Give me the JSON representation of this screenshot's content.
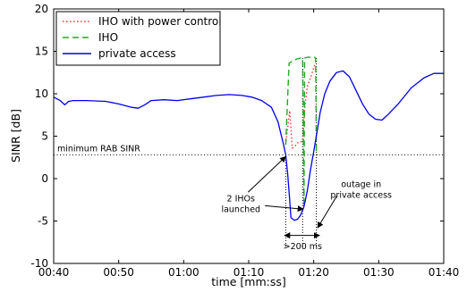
{
  "chart_data": {
    "type": "line",
    "xlabel": "time [mm:ss]",
    "ylabel": "SINR [dB]",
    "xlim": [
      40,
      100
    ],
    "ylim": [
      -10,
      20
    ],
    "grid": false,
    "legend_position": "top-left",
    "x_ticks": [
      {
        "value": 40,
        "label": "00:40"
      },
      {
        "value": 50,
        "label": "00:50"
      },
      {
        "value": 60,
        "label": "01:00"
      },
      {
        "value": 70,
        "label": "01:10"
      },
      {
        "value": 80,
        "label": "01:20"
      },
      {
        "value": 90,
        "label": "01:30"
      },
      {
        "value": 100,
        "label": "01:40"
      }
    ],
    "y_ticks": [
      -10,
      -5,
      0,
      5,
      10,
      15,
      20
    ],
    "series": [
      {
        "name": "IHO with power control",
        "color": "#ff3333",
        "dash": "dotted",
        "points": [
          [
            75.7,
            4.0
          ],
          [
            76.3,
            8.0
          ],
          [
            76.7,
            3.6
          ],
          [
            77.2,
            3.9
          ],
          [
            77.5,
            4.2
          ],
          [
            78.3,
            4.4
          ],
          [
            78.6,
            8.2
          ],
          [
            79.0,
            10.8
          ],
          [
            79.6,
            12.1
          ],
          [
            80.1,
            13.3
          ],
          [
            80.4,
            13.6
          ]
        ]
      },
      {
        "name": "IHO",
        "color": "#22aa22",
        "dash": "dashed",
        "points": [
          [
            75.7,
            4.0
          ],
          [
            76.2,
            13.6
          ],
          [
            76.8,
            13.9
          ],
          [
            77.4,
            14.1
          ],
          [
            78.0,
            14.2
          ],
          [
            78.3,
            14.2
          ],
          [
            78.5,
            -3.3
          ],
          [
            78.6,
            14.2
          ],
          [
            79.0,
            14.3
          ],
          [
            79.6,
            14.3
          ],
          [
            80.1,
            14.3
          ],
          [
            80.3,
            14.2
          ],
          [
            80.4,
            3.0
          ]
        ]
      },
      {
        "name": "private access",
        "color": "#0000ee",
        "dash": "solid",
        "points": [
          [
            40.0,
            9.6
          ],
          [
            41.0,
            9.2
          ],
          [
            41.7,
            8.7
          ],
          [
            42.3,
            9.1
          ],
          [
            43.0,
            9.2
          ],
          [
            45.0,
            9.2
          ],
          [
            48.0,
            9.1
          ],
          [
            50.0,
            8.8
          ],
          [
            52.0,
            8.4
          ],
          [
            53.0,
            8.3
          ],
          [
            54.0,
            8.7
          ],
          [
            55.0,
            9.2
          ],
          [
            57.0,
            9.3
          ],
          [
            59.0,
            9.2
          ],
          [
            61.0,
            9.4
          ],
          [
            63.0,
            9.6
          ],
          [
            65.0,
            9.8
          ],
          [
            67.0,
            9.9
          ],
          [
            69.0,
            9.8
          ],
          [
            70.5,
            9.6
          ],
          [
            72.0,
            9.2
          ],
          [
            73.5,
            8.4
          ],
          [
            74.5,
            6.7
          ],
          [
            75.3,
            4.2
          ],
          [
            75.7,
            2.8
          ],
          [
            76.0,
            0.5
          ],
          [
            76.3,
            -2.5
          ],
          [
            76.5,
            -4.6
          ],
          [
            77.0,
            -4.9
          ],
          [
            77.5,
            -4.8
          ],
          [
            78.0,
            -4.3
          ],
          [
            78.5,
            -3.3
          ],
          [
            79.0,
            -1.5
          ],
          [
            79.5,
            1.0
          ],
          [
            80.0,
            3.2
          ],
          [
            80.4,
            5.0
          ],
          [
            81.0,
            7.8
          ],
          [
            81.7,
            10.0
          ],
          [
            82.5,
            11.5
          ],
          [
            83.5,
            12.5
          ],
          [
            84.5,
            12.7
          ],
          [
            85.5,
            12.0
          ],
          [
            86.5,
            10.4
          ],
          [
            87.5,
            8.8
          ],
          [
            88.5,
            7.6
          ],
          [
            89.5,
            7.0
          ],
          [
            90.5,
            6.9
          ],
          [
            91.5,
            7.6
          ],
          [
            93.0,
            8.8
          ],
          [
            95.0,
            10.7
          ],
          [
            97.0,
            11.9
          ],
          [
            98.5,
            12.4
          ],
          [
            100.0,
            12.4
          ]
        ]
      }
    ],
    "reference_line": {
      "label": "minimum RAB SINR",
      "y": 2.8
    },
    "annotations": [
      {
        "id": "two-ihos",
        "lines": [
          "2 IHOs",
          "launched"
        ],
        "x": 68.8,
        "y": -2.7
      },
      {
        "id": "outage",
        "lines": [
          "outage in",
          "private access"
        ],
        "x": 87.3,
        "y": -1.0
      },
      {
        "id": "duration",
        "lines": [
          ">200 ms"
        ],
        "x": 78.3,
        "y": -8.3
      }
    ],
    "annotation_arrows": [
      {
        "from": [
          69.9,
          -1.6
        ],
        "to": [
          75.7,
          2.6
        ]
      },
      {
        "from": [
          72.5,
          -3.2
        ],
        "to": [
          78.4,
          -3.6
        ]
      },
      {
        "from": [
          83.6,
          -2.0
        ],
        "to": [
          80.6,
          -5.8
        ]
      },
      {
        "from": [
          78.3,
          -6.7
        ],
        "to": [
          75.5,
          -6.7
        ]
      },
      {
        "from": [
          78.3,
          -6.7
        ],
        "to": [
          80.9,
          -6.7
        ]
      }
    ],
    "vertical_markers": [
      {
        "x": 75.7,
        "y_from": -8.0,
        "y_to": 3.0
      },
      {
        "x": 78.3,
        "y_from": -8.0,
        "y_to": 14.3
      },
      {
        "x": 80.4,
        "y_from": -8.0,
        "y_to": 14.3
      }
    ]
  }
}
